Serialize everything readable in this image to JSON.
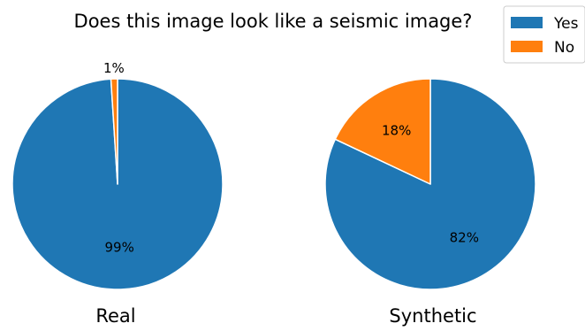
{
  "chart_data": {
    "type": "pie",
    "title": "Does this image look like a seismic image?",
    "legend": {
      "placement": "top-right",
      "entries": [
        {
          "label": "Yes",
          "color": "#1f77b4"
        },
        {
          "label": "No",
          "color": "#ff7f0e"
        }
      ]
    },
    "charts": [
      {
        "label": "Real",
        "slices": [
          {
            "name": "Yes",
            "value": 99,
            "label": "99%",
            "color": "#1f77b4"
          },
          {
            "name": "No",
            "value": 1,
            "label": "1%",
            "color": "#ff7f0e"
          }
        ]
      },
      {
        "label": "Synthetic",
        "slices": [
          {
            "name": "Yes",
            "value": 82,
            "label": "82%",
            "color": "#1f77b4"
          },
          {
            "name": "No",
            "value": 18,
            "label": "18%",
            "color": "#ff7f0e"
          }
        ]
      }
    ]
  }
}
